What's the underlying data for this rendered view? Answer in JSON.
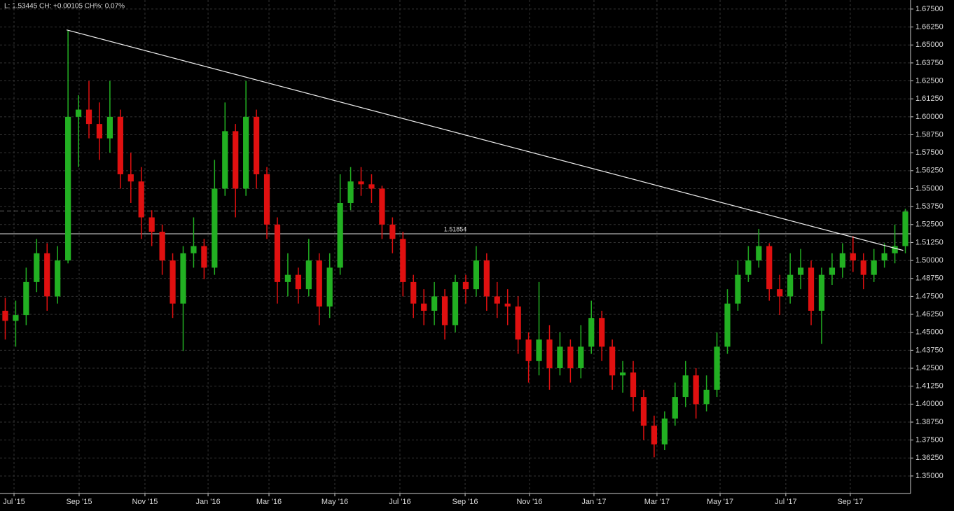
{
  "chart_data": {
    "type": "candlestick",
    "info": "L: 1.53445 CH: +0.00105 CH%: 0.07%",
    "open": [
      1.465,
      1.458,
      1.462,
      1.485,
      1.505,
      1.475,
      1.5,
      1.6,
      1.605,
      1.595,
      1.585,
      1.6,
      1.56,
      1.555,
      1.53,
      1.52,
      1.5,
      1.47,
      1.505,
      1.51,
      1.495,
      1.55,
      1.59,
      1.55,
      1.6,
      1.56,
      1.525,
      1.485,
      1.49,
      1.48,
      1.5,
      1.468,
      1.495,
      1.54,
      1.555,
      1.553,
      1.55,
      1.525,
      1.515,
      1.485,
      1.47,
      1.465,
      1.475,
      1.455,
      1.485,
      1.48,
      1.5,
      1.475,
      1.47,
      1.468,
      1.445,
      1.43,
      1.445,
      1.425,
      1.44,
      1.425,
      1.44,
      1.46,
      1.44,
      1.42,
      1.422,
      1.405,
      1.385,
      1.372,
      1.39,
      1.405,
      1.42,
      1.4,
      1.41,
      1.44,
      1.47,
      1.49,
      1.5,
      1.51,
      1.48,
      1.475,
      1.49,
      1.495,
      1.465,
      1.49,
      1.495,
      1.505,
      1.5,
      1.49,
      1.5,
      1.505,
      1.51
    ],
    "high": [
      1.474,
      1.472,
      1.495,
      1.515,
      1.512,
      1.51,
      1.66,
      1.615,
      1.625,
      1.61,
      1.625,
      1.605,
      1.575,
      1.565,
      1.535,
      1.525,
      1.505,
      1.51,
      1.53,
      1.515,
      1.57,
      1.61,
      1.595,
      1.625,
      1.605,
      1.565,
      1.53,
      1.505,
      1.495,
      1.515,
      1.505,
      1.505,
      1.56,
      1.565,
      1.565,
      1.56,
      1.552,
      1.53,
      1.52,
      1.49,
      1.48,
      1.485,
      1.48,
      1.49,
      1.49,
      1.51,
      1.505,
      1.485,
      1.48,
      1.475,
      1.45,
      1.485,
      1.455,
      1.45,
      1.445,
      1.455,
      1.472,
      1.465,
      1.445,
      1.43,
      1.43,
      1.41,
      1.392,
      1.395,
      1.415,
      1.43,
      1.425,
      1.42,
      1.45,
      1.48,
      1.5,
      1.51,
      1.522,
      1.512,
      1.49,
      1.505,
      1.508,
      1.5,
      1.495,
      1.505,
      1.512,
      1.517,
      1.505,
      1.508,
      1.512,
      1.525,
      1.536
    ],
    "low": [
      1.445,
      1.44,
      1.455,
      1.478,
      1.465,
      1.47,
      1.498,
      1.565,
      1.585,
      1.57,
      1.575,
      1.55,
      1.54,
      1.515,
      1.51,
      1.49,
      1.46,
      1.437,
      1.495,
      1.487,
      1.49,
      1.545,
      1.53,
      1.545,
      1.55,
      1.515,
      1.47,
      1.475,
      1.47,
      1.475,
      1.455,
      1.46,
      1.49,
      1.535,
      1.545,
      1.54,
      1.515,
      1.505,
      1.475,
      1.46,
      1.455,
      1.455,
      1.445,
      1.45,
      1.47,
      1.475,
      1.465,
      1.46,
      1.455,
      1.435,
      1.415,
      1.42,
      1.41,
      1.42,
      1.415,
      1.418,
      1.435,
      1.43,
      1.41,
      1.408,
      1.395,
      1.375,
      1.363,
      1.368,
      1.385,
      1.398,
      1.39,
      1.395,
      1.405,
      1.435,
      1.465,
      1.485,
      1.495,
      1.472,
      1.462,
      1.47,
      1.48,
      1.455,
      1.442,
      1.483,
      1.488,
      1.492,
      1.48,
      1.485,
      1.495,
      1.498,
      1.505
    ],
    "close": [
      1.458,
      1.462,
      1.485,
      1.505,
      1.475,
      1.5,
      1.6,
      1.605,
      1.595,
      1.585,
      1.6,
      1.56,
      1.555,
      1.53,
      1.52,
      1.5,
      1.47,
      1.505,
      1.51,
      1.495,
      1.55,
      1.59,
      1.55,
      1.6,
      1.56,
      1.525,
      1.485,
      1.49,
      1.48,
      1.5,
      1.468,
      1.495,
      1.54,
      1.555,
      1.553,
      1.55,
      1.525,
      1.515,
      1.485,
      1.47,
      1.465,
      1.475,
      1.455,
      1.485,
      1.48,
      1.5,
      1.475,
      1.47,
      1.468,
      1.445,
      1.43,
      1.445,
      1.425,
      1.44,
      1.425,
      1.44,
      1.46,
      1.44,
      1.42,
      1.422,
      1.405,
      1.385,
      1.372,
      1.39,
      1.405,
      1.42,
      1.4,
      1.41,
      1.44,
      1.47,
      1.49,
      1.5,
      1.51,
      1.48,
      1.475,
      1.49,
      1.495,
      1.465,
      1.49,
      1.495,
      1.505,
      1.5,
      1.49,
      1.5,
      1.505,
      1.51,
      1.534
    ],
    "up_color": "#22b022",
    "down_color": "#e01010",
    "xlim": [
      0,
      87
    ],
    "ylim": [
      1.3378,
      1.6813
    ],
    "xticks": [
      {
        "value": 1.34,
        "label": "Jul '15"
      },
      {
        "value": 7.56,
        "label": "Sep '15"
      },
      {
        "value": 13.85,
        "label": "Nov '15"
      },
      {
        "value": 19.88,
        "label": "Jan '16"
      },
      {
        "value": 25.7,
        "label": "Mar '16"
      },
      {
        "value": 31.99,
        "label": "May '16"
      },
      {
        "value": 38.21,
        "label": "Jul '16"
      },
      {
        "value": 44.44,
        "label": "Sep '16"
      },
      {
        "value": 50.59,
        "label": "Nov '16"
      },
      {
        "value": 56.75,
        "label": "Jan '17"
      },
      {
        "value": 62.77,
        "label": "Mar '17"
      },
      {
        "value": 68.8,
        "label": "May '17"
      },
      {
        "value": 75.08,
        "label": "Jul '17"
      },
      {
        "value": 81.24,
        "label": "Sep '17"
      }
    ],
    "yticks": [
      {
        "value": 1.35,
        "label": "1.35000"
      },
      {
        "value": 1.3625,
        "label": "1.36250"
      },
      {
        "value": 1.375,
        "label": "1.37500"
      },
      {
        "value": 1.3875,
        "label": "1.38750"
      },
      {
        "value": 1.4,
        "label": "1.40000"
      },
      {
        "value": 1.4125,
        "label": "1.41250"
      },
      {
        "value": 1.425,
        "label": "1.42500"
      },
      {
        "value": 1.4375,
        "label": "1.43750"
      },
      {
        "value": 1.45,
        "label": "1.45000"
      },
      {
        "value": 1.4625,
        "label": "1.46250"
      },
      {
        "value": 1.475,
        "label": "1.47500"
      },
      {
        "value": 1.4875,
        "label": "1.48750"
      },
      {
        "value": 1.5,
        "label": "1.50000"
      },
      {
        "value": 1.5125,
        "label": "1.51250"
      },
      {
        "value": 1.525,
        "label": "1.52500"
      },
      {
        "value": 1.5375,
        "label": "1.53750"
      },
      {
        "value": 1.55,
        "label": "1.55000"
      },
      {
        "value": 1.5625,
        "label": "1.56250"
      },
      {
        "value": 1.575,
        "label": "1.57500"
      },
      {
        "value": 1.5875,
        "label": "1.58750"
      },
      {
        "value": 1.6,
        "label": "1.60000"
      },
      {
        "value": 1.6125,
        "label": "1.61250"
      },
      {
        "value": 1.625,
        "label": "1.62500"
      },
      {
        "value": 1.6375,
        "label": "1.63750"
      },
      {
        "value": 1.65,
        "label": "1.65000"
      },
      {
        "value": 1.6625,
        "label": "1.66250"
      },
      {
        "value": 1.675,
        "label": "1.67500"
      }
    ],
    "grid": true,
    "hline": 1.51854,
    "last_price": 1.53445,
    "trendline": {
      "x": [
        6.36,
        86.3
      ],
      "y": [
        1.6605,
        1.507
      ]
    }
  }
}
